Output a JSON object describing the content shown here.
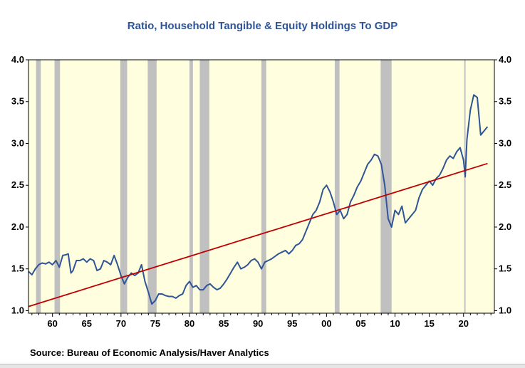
{
  "chart_data": {
    "type": "line",
    "title": "Ratio, Household Tangible & Equity Holdings To GDP",
    "source": "Source:  Bureau of Economic Analysis/Haver Analytics",
    "xlim": [
      1956.5,
      2024.5
    ],
    "ylim": [
      0.97,
      4.0
    ],
    "x_ticks": [
      1960,
      1965,
      1970,
      1975,
      1980,
      1985,
      1990,
      1995,
      2000,
      2005,
      2010,
      2015,
      2020
    ],
    "x_tick_labels": [
      "60",
      "65",
      "70",
      "75",
      "80",
      "85",
      "90",
      "95",
      "00",
      "05",
      "10",
      "15",
      "20"
    ],
    "y_ticks": [
      1.0,
      1.5,
      2.0,
      2.5,
      3.0,
      3.5,
      4.0
    ],
    "y_tick_labels": [
      "1.0",
      "1.5",
      "2.0",
      "2.5",
      "3.0",
      "3.5",
      "4.0"
    ],
    "background_color": "#ffffe0",
    "recession_color": "#c0c0c0",
    "recessions": [
      [
        1957.6,
        1958.3
      ],
      [
        1960.3,
        1961.1
      ],
      [
        1969.9,
        1970.9
      ],
      [
        1973.9,
        1975.2
      ],
      [
        1980.0,
        1980.5
      ],
      [
        1981.5,
        1982.9
      ],
      [
        1990.5,
        1991.2
      ],
      [
        2001.2,
        2001.9
      ],
      [
        2007.9,
        2009.5
      ],
      [
        2020.1,
        2020.3
      ]
    ],
    "series": [
      {
        "color": "#2f5597",
        "x": [
          1956.5,
          1957.0,
          1957.5,
          1958.0,
          1958.5,
          1959.0,
          1959.5,
          1960.0,
          1960.5,
          1961.0,
          1961.5,
          1962.0,
          1962.3,
          1962.7,
          1963.0,
          1963.5,
          1964.0,
          1964.5,
          1965.0,
          1965.5,
          1966.0,
          1966.5,
          1967.0,
          1967.5,
          1968.0,
          1968.5,
          1969.0,
          1969.5,
          1970.0,
          1970.5,
          1971.0,
          1971.5,
          1972.0,
          1972.5,
          1973.0,
          1973.5,
          1974.0,
          1974.5,
          1975.0,
          1975.5,
          1976.0,
          1976.5,
          1977.0,
          1977.5,
          1978.0,
          1978.5,
          1979.0,
          1979.5,
          1980.0,
          1980.5,
          1981.0,
          1981.5,
          1982.0,
          1982.5,
          1983.0,
          1983.5,
          1984.0,
          1984.5,
          1985.0,
          1985.5,
          1986.0,
          1986.5,
          1987.0,
          1987.5,
          1988.0,
          1988.5,
          1989.0,
          1989.5,
          1990.0,
          1990.5,
          1991.0,
          1991.5,
          1992.0,
          1992.5,
          1993.0,
          1993.5,
          1994.0,
          1994.5,
          1995.0,
          1995.5,
          1996.0,
          1996.5,
          1997.0,
          1997.5,
          1998.0,
          1998.5,
          1999.0,
          1999.5,
          2000.0,
          2000.5,
          2001.0,
          2001.5,
          2002.0,
          2002.5,
          2003.0,
          2003.5,
          2004.0,
          2004.5,
          2005.0,
          2005.5,
          2006.0,
          2006.5,
          2007.0,
          2007.5,
          2008.0,
          2008.5,
          2009.0,
          2009.5,
          2010.0,
          2010.5,
          2011.0,
          2011.5,
          2012.0,
          2012.5,
          2013.0,
          2013.5,
          2014.0,
          2014.5,
          2015.0,
          2015.5,
          2016.0,
          2016.5,
          2017.0,
          2017.5,
          2018.0,
          2018.5,
          2019.0,
          2019.5,
          2020.0,
          2020.25,
          2020.5,
          2021.0,
          2021.5,
          2022.0,
          2022.5,
          2023.0,
          2023.5
        ],
        "values": [
          1.47,
          1.43,
          1.5,
          1.55,
          1.57,
          1.56,
          1.58,
          1.55,
          1.6,
          1.52,
          1.66,
          1.67,
          1.68,
          1.45,
          1.48,
          1.6,
          1.6,
          1.62,
          1.58,
          1.62,
          1.6,
          1.48,
          1.5,
          1.6,
          1.58,
          1.55,
          1.66,
          1.55,
          1.42,
          1.32,
          1.4,
          1.45,
          1.42,
          1.45,
          1.55,
          1.35,
          1.22,
          1.08,
          1.12,
          1.2,
          1.2,
          1.18,
          1.17,
          1.17,
          1.15,
          1.18,
          1.2,
          1.3,
          1.35,
          1.28,
          1.3,
          1.25,
          1.25,
          1.3,
          1.32,
          1.28,
          1.25,
          1.27,
          1.32,
          1.38,
          1.45,
          1.52,
          1.58,
          1.5,
          1.52,
          1.55,
          1.6,
          1.62,
          1.58,
          1.5,
          1.58,
          1.6,
          1.62,
          1.65,
          1.68,
          1.7,
          1.72,
          1.68,
          1.72,
          1.78,
          1.8,
          1.85,
          1.95,
          2.05,
          2.15,
          2.2,
          2.3,
          2.45,
          2.5,
          2.42,
          2.3,
          2.15,
          2.2,
          2.1,
          2.15,
          2.3,
          2.38,
          2.48,
          2.55,
          2.65,
          2.75,
          2.8,
          2.87,
          2.85,
          2.75,
          2.5,
          2.1,
          2.0,
          2.2,
          2.15,
          2.25,
          2.05,
          2.1,
          2.15,
          2.2,
          2.35,
          2.45,
          2.5,
          2.55,
          2.5,
          2.58,
          2.62,
          2.7,
          2.8,
          2.85,
          2.82,
          2.9,
          2.95,
          2.8,
          2.6,
          3.05,
          3.4,
          3.58,
          3.55,
          3.1,
          3.15,
          3.2
        ]
      },
      {
        "color": "#c00000",
        "x": [
          1956.5,
          2023.5
        ],
        "values": [
          1.05,
          2.76
        ]
      }
    ]
  }
}
